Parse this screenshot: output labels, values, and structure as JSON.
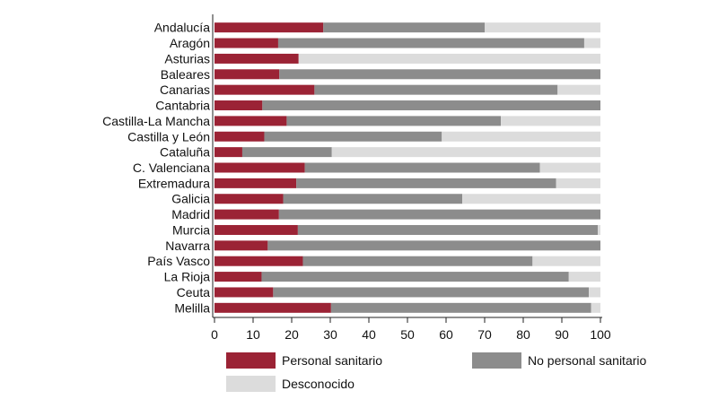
{
  "chart_data": {
    "type": "bar",
    "orientation": "horizontal",
    "stacked": true,
    "grid": false,
    "legend_position": "bottom",
    "xlim": [
      0,
      100
    ],
    "x_ticks": [
      0,
      10,
      20,
      30,
      40,
      50,
      60,
      70,
      80,
      90,
      100
    ],
    "categories": [
      "Andalucía",
      "Aragón",
      "Asturias",
      "Baleares",
      "Canarias",
      "Cantabria",
      "Castilla-La Mancha",
      "Castilla y León",
      "Cataluña",
      "C. Valenciana",
      "Extremadura",
      "Galicia",
      "Madrid",
      "Murcia",
      "Navarra",
      "País Vasco",
      "La Rioja",
      "Ceuta",
      "Melilla"
    ],
    "series": [
      {
        "name": "Personal sanitario",
        "color": "#9b2335",
        "values": [
          28.2,
          16.5,
          21.8,
          16.8,
          25.9,
          12.4,
          18.7,
          12.9,
          7.2,
          23.4,
          21.2,
          17.8,
          16.7,
          21.6,
          13.8,
          22.9,
          12.2,
          15.2,
          30.2
        ]
      },
      {
        "name": "No personal sanitario",
        "color": "#8c8c8c",
        "values": [
          41.8,
          79.3,
          0,
          83.2,
          63.0,
          87.6,
          55.5,
          46.0,
          23.2,
          60.9,
          67.3,
          46.4,
          83.3,
          77.7,
          86.2,
          59.5,
          79.6,
          81.8,
          67.4
        ]
      },
      {
        "name": "Desconocido",
        "color": "#dcdcdc",
        "values": [
          30.0,
          4.2,
          78.2,
          0,
          11.1,
          0,
          25.8,
          41.1,
          69.6,
          15.7,
          11.5,
          35.8,
          0,
          0.7,
          0,
          17.6,
          8.2,
          3.0,
          2.4
        ]
      }
    ]
  }
}
